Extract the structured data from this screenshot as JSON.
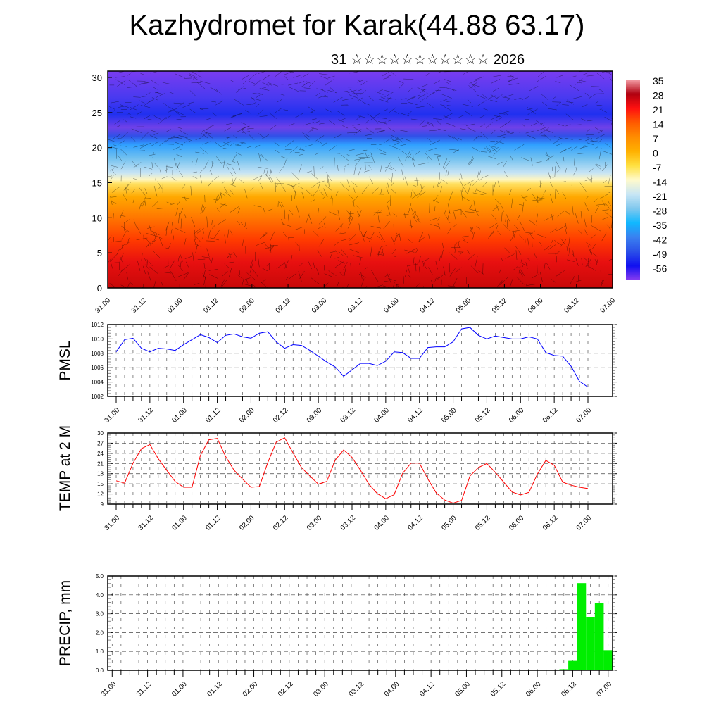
{
  "title": "Kazhydromet for Karak(44.88 63.17)",
  "subtitle": "31 ☆☆☆☆☆☆☆☆☆☆☆ 2026",
  "chart_data": [
    {
      "type": "heatmap",
      "name": "vertical-profile",
      "ylabel": "",
      "ylim": [
        0,
        30
      ],
      "yticks": [
        "0",
        "5",
        "10",
        "15",
        "20",
        "25",
        "30"
      ],
      "xlabels": [
        "31.00",
        "31.12",
        "01.00",
        "01.12",
        "02.00",
        "02.12",
        "03.00",
        "03.12",
        "04.00",
        "04.12",
        "05.00",
        "05.12",
        "06.00",
        "06.12",
        "07.00"
      ],
      "colorbar": {
        "labels": [
          "35",
          "28",
          "21",
          "14",
          "7",
          "0",
          "-7",
          "-14",
          "-21",
          "-28",
          "-35",
          "-42",
          "-49",
          "-56"
        ],
        "colors": [
          "#f5a0a8",
          "#b00010",
          "#ff1010",
          "#ff5a00",
          "#ff8c00",
          "#ffb000",
          "#ffe040",
          "#fffacc",
          "#c8e6f5",
          "#80c8ee",
          "#10b8ff",
          "#3a80f0",
          "#2b50e8",
          "#1010f0",
          "#8a3cf0"
        ]
      },
      "wind_barbs": true
    },
    {
      "type": "line",
      "name": "pmsl",
      "ylabel": "PMSL",
      "ylim": [
        1002,
        1012
      ],
      "yticks": [
        "1002",
        "1004",
        "1006",
        "1008",
        "1010",
        "1012"
      ],
      "xlabels": [
        "31.00",
        "31.12",
        "01.00",
        "01.12",
        "02.00",
        "02.12",
        "03.00",
        "03.12",
        "04.00",
        "04.12",
        "05.00",
        "05.12",
        "06.00",
        "06.12",
        "07.00"
      ],
      "color": "#0000ff",
      "values": [
        1008.2,
        1009.9,
        1010.1,
        1008.7,
        1008.2,
        1008.7,
        1008.6,
        1008.4,
        1009.2,
        1009.9,
        1010.6,
        1010.2,
        1009.5,
        1010.5,
        1010.7,
        1010.3,
        1010.1,
        1010.8,
        1011.0,
        1009.6,
        1008.7,
        1009.2,
        1009.1,
        1008.4,
        1007.6,
        1006.8,
        1006.1,
        1004.8,
        1005.7,
        1006.6,
        1006.6,
        1006.3,
        1006.9,
        1008.2,
        1008.1,
        1007.3,
        1007.3,
        1008.8,
        1008.9,
        1008.9,
        1009.6,
        1011.4,
        1011.6,
        1010.5,
        1010.0,
        1010.4,
        1010.2,
        1010.0,
        1010.0,
        1010.3,
        1010.0,
        1008.1,
        1007.7,
        1007.6,
        1006.2,
        1004.1,
        1003.3
      ]
    },
    {
      "type": "line",
      "name": "temp-2m",
      "ylabel": "TEMP at 2 M",
      "ylim": [
        9,
        30
      ],
      "yticks": [
        "9",
        "12",
        "15",
        "18",
        "21",
        "24",
        "27",
        "30"
      ],
      "xlabels": [
        "31.00",
        "31.12",
        "01.00",
        "01.12",
        "02.00",
        "02.12",
        "03.00",
        "03.12",
        "04.00",
        "04.12",
        "05.00",
        "05.12",
        "06.00",
        "06.12",
        "07.00"
      ],
      "color": "#ff0000",
      "values": [
        15.9,
        15.2,
        21.1,
        25.4,
        26.6,
        22.4,
        19.0,
        15.7,
        14.0,
        14.0,
        23.4,
        28.0,
        28.4,
        23.0,
        19.0,
        16.4,
        14.0,
        14.2,
        21.3,
        27.3,
        28.6,
        24.1,
        19.8,
        17.3,
        14.9,
        15.7,
        22.0,
        25.0,
        22.8,
        19.0,
        14.9,
        12.1,
        10.6,
        11.8,
        18.1,
        21.1,
        21.1,
        16.4,
        12.3,
        10.2,
        9.3,
        10.1,
        17.3,
        19.8,
        21.0,
        18.4,
        15.5,
        12.6,
        11.7,
        12.5,
        17.9,
        21.9,
        20.5,
        15.5,
        14.6,
        14.0,
        13.6
      ]
    },
    {
      "type": "bar",
      "name": "precip",
      "ylabel": "PRECIP, mm",
      "ylim": [
        0,
        5
      ],
      "yticks": [
        "0.0",
        "1.0",
        "2.0",
        "3.0",
        "4.0",
        "5.0"
      ],
      "xlabels": [
        "31.00",
        "31.12",
        "01.00",
        "01.12",
        "02.00",
        "02.12",
        "03.00",
        "03.12",
        "04.00",
        "04.12",
        "05.00",
        "05.12",
        "06.00",
        "06.12",
        "07.00"
      ],
      "color": "#00ee00",
      "values": [
        0,
        0,
        0,
        0,
        0,
        0,
        0,
        0,
        0,
        0,
        0,
        0,
        0,
        0,
        0,
        0,
        0,
        0,
        0,
        0,
        0,
        0,
        0,
        0,
        0,
        0,
        0,
        0,
        0,
        0.03,
        0,
        0,
        0,
        0,
        0,
        0,
        0,
        0,
        0,
        0,
        0,
        0,
        0,
        0,
        0,
        0,
        0,
        0,
        0,
        0,
        0,
        0.06,
        0.5,
        4.62,
        2.81,
        3.57,
        1.07
      ]
    }
  ]
}
